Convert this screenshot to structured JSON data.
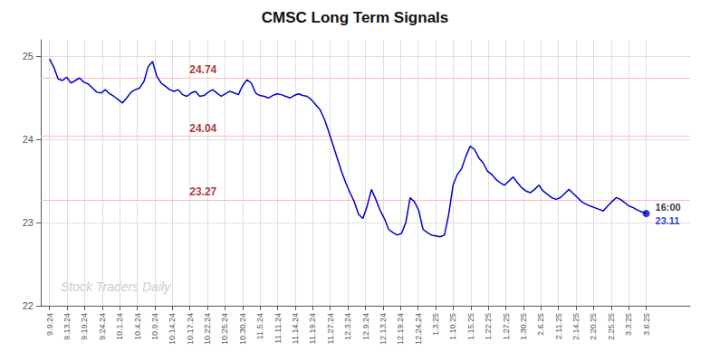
{
  "chart_data": {
    "type": "line",
    "title": "CMSC Long Term Signals",
    "color": "#0000cc",
    "x": [
      0,
      0.2446,
      0.4892,
      0.7338,
      0.9784,
      1.223,
      1.4676,
      1.7122,
      1.9568,
      2.2014,
      2.446,
      2.6906,
      2.9353,
      3.1799,
      3.4245,
      3.6691,
      3.9137,
      4.1583,
      4.4029,
      4.6475,
      4.8921,
      5.1367,
      5.3813,
      5.6259,
      5.8705,
      6.1151,
      6.3597,
      6.6043,
      6.8489,
      7.0935,
      7.3381,
      7.5827,
      7.8273,
      8.0719,
      8.3165,
      8.5612,
      8.8058,
      9.0504,
      9.295,
      9.5396,
      9.7842,
      10.0288,
      10.2734,
      10.518,
      10.7626,
      11.0072,
      11.2518,
      11.4964,
      11.741,
      11.9856,
      12.2302,
      12.4748,
      12.7194,
      12.964,
      13.2086,
      13.4532,
      13.6978,
      13.9424,
      14.1871,
      14.4317,
      14.6763,
      14.9209,
      15.1655,
      15.4101,
      15.6547,
      15.8993,
      16.1439,
      16.3885,
      16.6331,
      16.8777,
      17.1223,
      17.3669,
      17.6115,
      17.8561,
      18.1007,
      18.3453,
      18.5899,
      18.8345,
      19.0791,
      19.3237,
      19.5683,
      19.8129,
      20.0576,
      20.3022,
      20.5468,
      20.7914,
      21.036,
      21.2806,
      21.5252,
      21.7698,
      22.0144,
      22.259,
      22.5036,
      22.7482,
      22.9928,
      23.2374,
      23.482,
      23.7266,
      23.9712,
      24.2158,
      24.4604,
      24.705,
      24.9496,
      25.1942,
      25.4388,
      25.6835,
      25.9281,
      26.1727,
      26.4173,
      26.6619,
      26.9065,
      27.1511,
      27.3957,
      27.6403,
      27.8849,
      28.1295,
      28.3741,
      28.6187,
      28.8633,
      29.1079,
      29.3525,
      29.5971,
      29.8417,
      30.0863,
      30.3309,
      30.5755,
      30.8201,
      31.0647,
      31.3094,
      31.554,
      31.7986,
      32.0432,
      32.2878,
      32.5324,
      32.777,
      33.0216,
      33.2662,
      33.5108,
      33.7554,
      34
    ],
    "values": [
      24.97,
      24.87,
      24.73,
      24.71,
      24.75,
      24.68,
      24.71,
      24.74,
      24.69,
      24.67,
      24.62,
      24.57,
      24.56,
      24.6,
      24.55,
      24.52,
      24.48,
      24.44,
      24.5,
      24.57,
      24.6,
      24.62,
      24.7,
      24.88,
      24.94,
      24.76,
      24.68,
      24.64,
      24.6,
      24.58,
      24.6,
      24.54,
      24.52,
      24.56,
      24.58,
      24.52,
      24.53,
      24.57,
      24.6,
      24.56,
      24.52,
      24.55,
      24.58,
      24.56,
      24.54,
      24.65,
      24.72,
      24.68,
      24.56,
      24.53,
      24.52,
      24.5,
      24.53,
      24.55,
      24.54,
      24.52,
      24.5,
      24.53,
      24.55,
      24.53,
      24.52,
      24.48,
      24.42,
      24.36,
      24.25,
      24.1,
      23.94,
      23.78,
      23.62,
      23.48,
      23.36,
      23.25,
      23.1,
      23.05,
      23.2,
      23.4,
      23.28,
      23.15,
      23.05,
      22.92,
      22.88,
      22.85,
      22.87,
      23.0,
      23.3,
      23.25,
      23.15,
      22.92,
      22.88,
      22.85,
      22.84,
      22.83,
      22.85,
      23.1,
      23.45,
      23.58,
      23.65,
      23.8,
      23.92,
      23.88,
      23.78,
      23.72,
      23.62,
      23.58,
      23.52,
      23.48,
      23.45,
      23.5,
      23.55,
      23.48,
      23.42,
      23.38,
      23.36,
      23.4,
      23.45,
      23.38,
      23.34,
      23.3,
      23.28,
      23.3,
      23.35,
      23.4,
      23.35,
      23.3,
      23.25,
      23.22,
      23.2,
      23.18,
      23.16,
      23.14,
      23.2,
      23.25,
      23.3,
      23.28,
      23.24,
      23.2,
      23.18,
      23.15,
      23.13,
      23.11
    ],
    "xlim": [
      -0.5,
      36.5
    ],
    "xticks": [
      {
        "value": 0,
        "label": "9.9.24"
      },
      {
        "value": 1,
        "label": "9.13.24"
      },
      {
        "value": 2,
        "label": "9.19.24"
      },
      {
        "value": 3,
        "label": "9.24.24"
      },
      {
        "value": 4,
        "label": "10.1.24"
      },
      {
        "value": 5,
        "label": "10.4.24"
      },
      {
        "value": 6,
        "label": "10.9.24"
      },
      {
        "value": 7,
        "label": "10.14.24"
      },
      {
        "value": 8,
        "label": "10.17.24"
      },
      {
        "value": 9,
        "label": "10.22.24"
      },
      {
        "value": 10,
        "label": "10.25.24"
      },
      {
        "value": 11,
        "label": "10.30.24"
      },
      {
        "value": 12,
        "label": "11.5.24"
      },
      {
        "value": 13,
        "label": "11.11.24"
      },
      {
        "value": 14,
        "label": "11.14.24"
      },
      {
        "value": 15,
        "label": "11.19.24"
      },
      {
        "value": 16,
        "label": "11.27.24"
      },
      {
        "value": 17,
        "label": "12.3.24"
      },
      {
        "value": 18,
        "label": "12.9.24"
      },
      {
        "value": 19,
        "label": "12.13.24"
      },
      {
        "value": 20,
        "label": "12.19.24"
      },
      {
        "value": 21,
        "label": "12.24.24"
      },
      {
        "value": 22,
        "label": "1.3.25"
      },
      {
        "value": 23,
        "label": "1.10.25"
      },
      {
        "value": 24,
        "label": "1.15.25"
      },
      {
        "value": 25,
        "label": "1.22.25"
      },
      {
        "value": 26,
        "label": "1.27.25"
      },
      {
        "value": 27,
        "label": "1.30.25"
      },
      {
        "value": 28,
        "label": "2.6.25"
      },
      {
        "value": 29,
        "label": "2.11.25"
      },
      {
        "value": 30,
        "label": "2.14.25"
      },
      {
        "value": 31,
        "label": "2.20.25"
      },
      {
        "value": 32,
        "label": "2.25.25"
      },
      {
        "value": 33,
        "label": "3.3.25"
      },
      {
        "value": 34,
        "label": "3.6.25"
      }
    ],
    "ylim": [
      22,
      25.2
    ],
    "yticks": [
      22,
      23,
      24,
      25
    ],
    "grid": true,
    "hlines": [
      {
        "y": 24.74,
        "label": "24.74",
        "color": "#ffbbbb"
      },
      {
        "y": 24.04,
        "label": "24.04",
        "color": "#ffbbbb"
      },
      {
        "y": 23.27,
        "label": "23.27",
        "color": "#ffbbbb"
      }
    ],
    "hline_label_color": "#990000",
    "end_labels": [
      "16:00",
      "23.11"
    ],
    "watermark": "Stock Traders Daily",
    "watermark_color": "#cccccc"
  }
}
